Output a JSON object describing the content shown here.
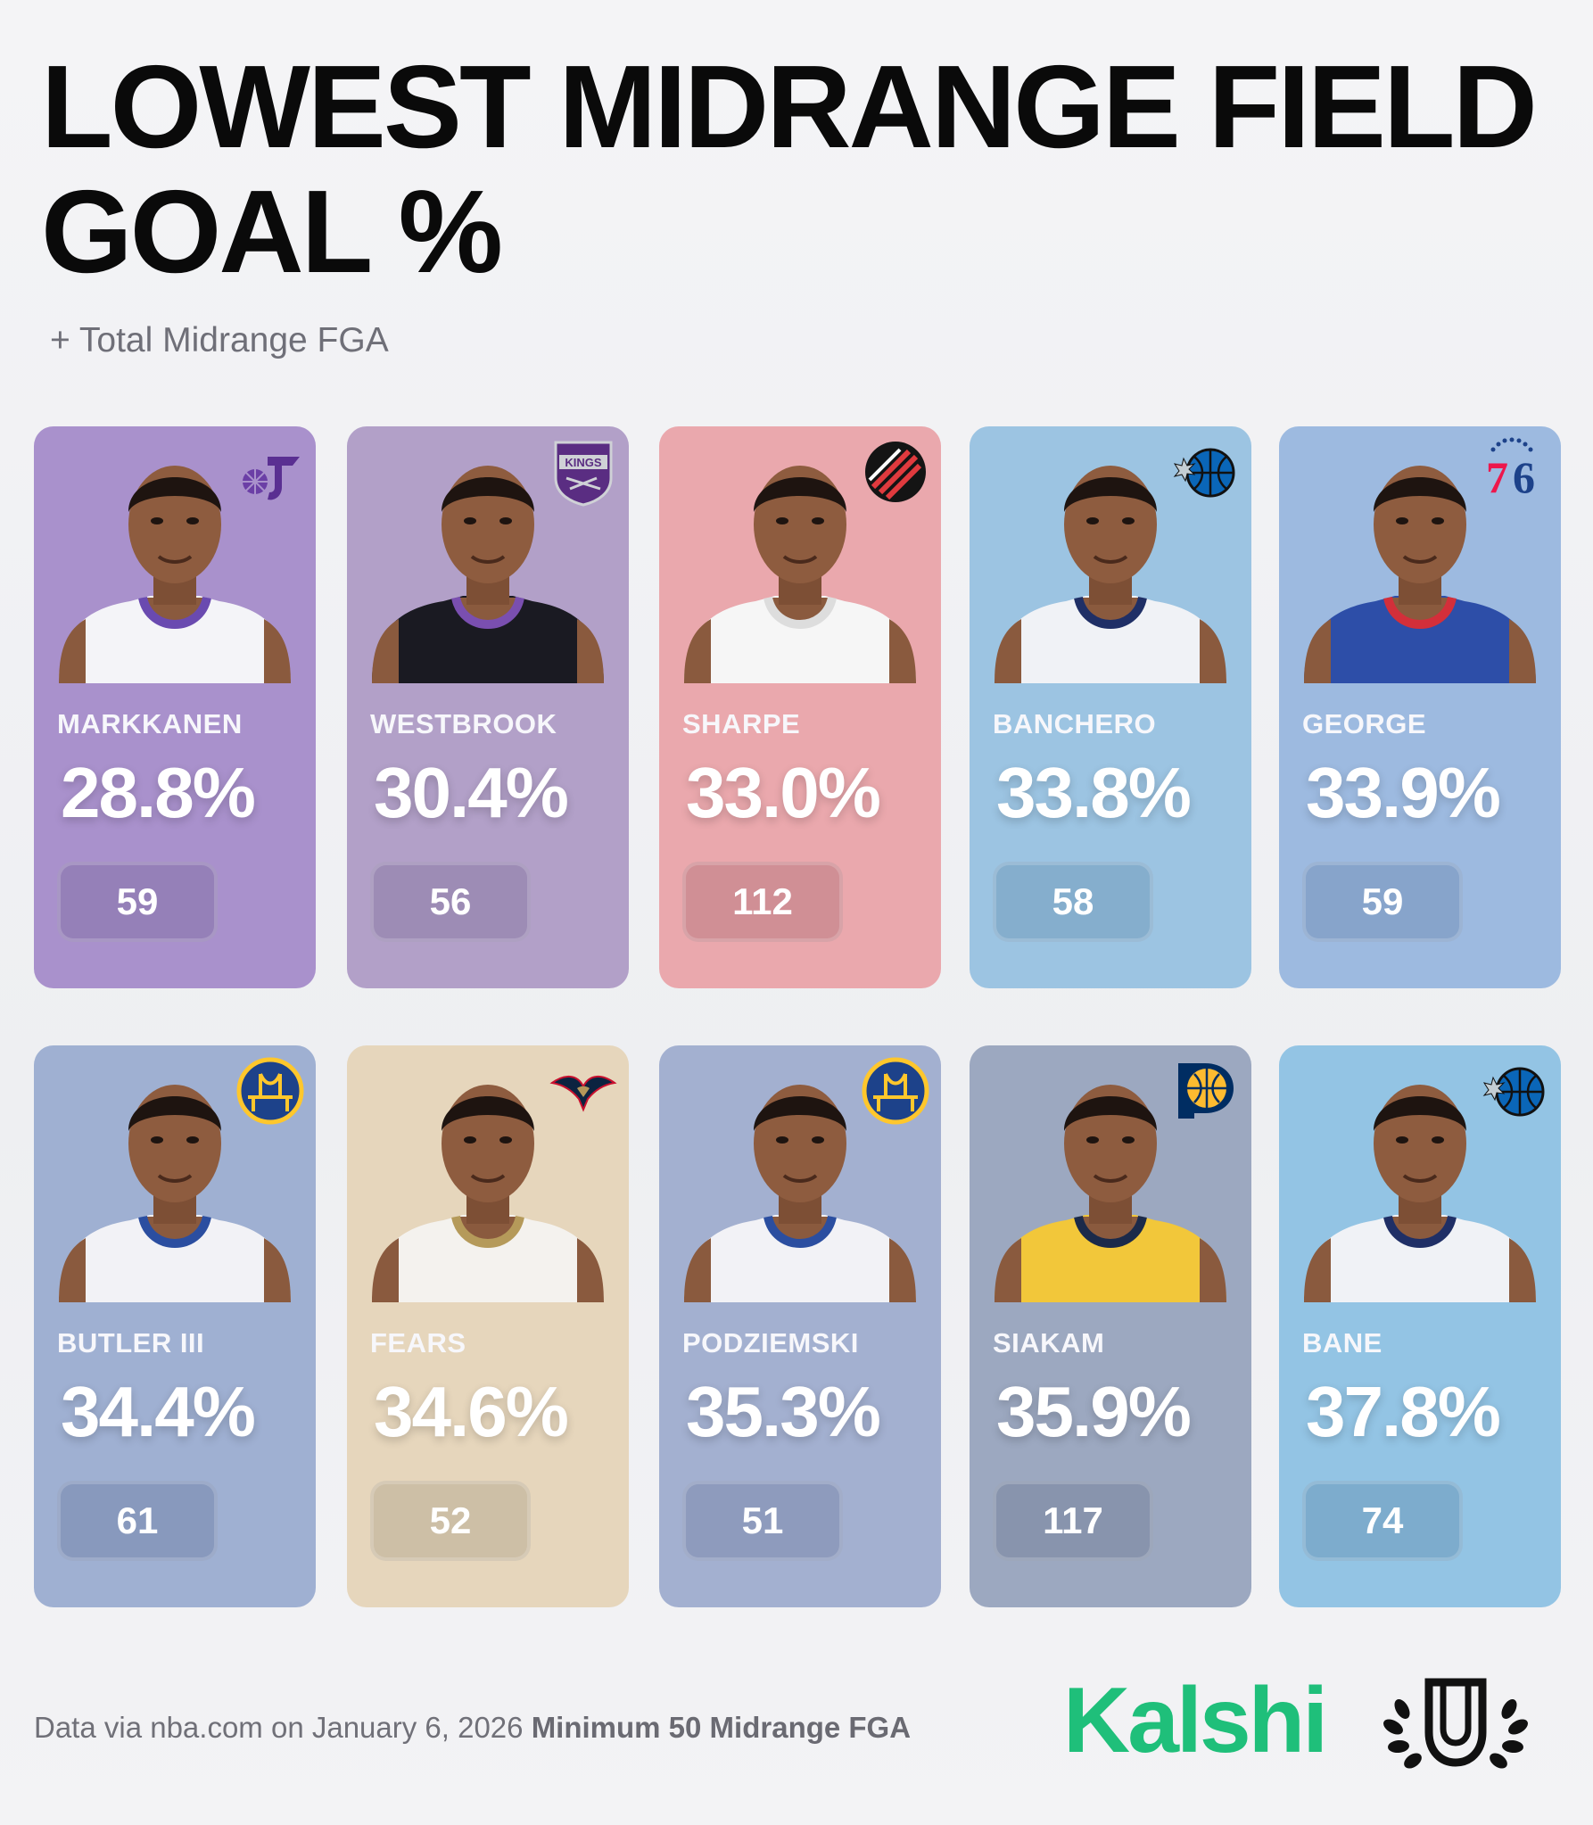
{
  "header": {
    "title": "LOWEST MIDRANGE FIELD GOAL %",
    "subtitle": "+ Total Midrange FGA"
  },
  "players": [
    {
      "name": "MARKKANEN",
      "pct": "28.8%",
      "fga": "59",
      "team_icon": "jazz-logo-icon",
      "card_color": "#a991cc",
      "pill_color": "#9580b8",
      "jersey_color": "#f4f4f8",
      "trim_color": "#6a4ab0"
    },
    {
      "name": "WESTBROOK",
      "pct": "30.4%",
      "fga": "56",
      "team_icon": "kings-logo-icon",
      "card_color": "#b2a0c8",
      "pill_color": "#9d8cb5",
      "jersey_color": "#1a1a22",
      "trim_color": "#7a4fb0"
    },
    {
      "name": "SHARPE",
      "pct": "33.0%",
      "fga": "112",
      "team_icon": "blazers-logo-icon",
      "card_color": "#eaa8ad",
      "pill_color": "#d08f95",
      "jersey_color": "#f6f6f6",
      "trim_color": "#dddddd"
    },
    {
      "name": "BANCHERO",
      "pct": "33.8%",
      "fga": "58",
      "team_icon": "magic-logo-icon",
      "card_color": "#9cc4e2",
      "pill_color": "#85aecd",
      "jersey_color": "#f0f2f6",
      "trim_color": "#1f2f66"
    },
    {
      "name": "GEORGE",
      "pct": "33.9%",
      "fga": "59",
      "team_icon": "sixers-logo-icon",
      "card_color": "#9dbae0",
      "pill_color": "#87a4cb",
      "jersey_color": "#2d4ea8",
      "trim_color": "#d32f3a"
    },
    {
      "name": "BUTLER III",
      "pct": "34.4%",
      "fga": "61",
      "team_icon": "warriors-logo-icon",
      "card_color": "#9fb0d2",
      "pill_color": "#8899bd",
      "jersey_color": "#f2f2f6",
      "trim_color": "#2b4ea0"
    },
    {
      "name": "FEARS",
      "pct": "34.6%",
      "fga": "52",
      "team_icon": "pelicans-logo-icon",
      "card_color": "#e6d6bc",
      "pill_color": "#cdbfa6",
      "jersey_color": "#f4f2ee",
      "trim_color": "#b59a5a"
    },
    {
      "name": "PODZIEMSKI",
      "pct": "35.3%",
      "fga": "51",
      "team_icon": "warriors-logo-icon",
      "card_color": "#a3b0d0",
      "pill_color": "#8e9bbd",
      "jersey_color": "#f2f2f6",
      "trim_color": "#2b4ea0"
    },
    {
      "name": "SIAKAM",
      "pct": "35.9%",
      "fga": "117",
      "team_icon": "pacers-logo-icon",
      "card_color": "#9ca8c0",
      "pill_color": "#8894ad",
      "jersey_color": "#f2c73a",
      "trim_color": "#1b2a4a"
    },
    {
      "name": "BANE",
      "pct": "37.8%",
      "fga": "74",
      "team_icon": "magic-logo-icon",
      "card_color": "#93c4e4",
      "pill_color": "#7daccd",
      "jersey_color": "#f0f2f6",
      "trim_color": "#1f2f66"
    }
  ],
  "footer": {
    "source": "Data via nba.com on January 6, 2026",
    "minimum": "Minimum 50 Midrange FGA",
    "brand": "Kalshi",
    "crest_icon": "laurel-u-crest-icon"
  }
}
